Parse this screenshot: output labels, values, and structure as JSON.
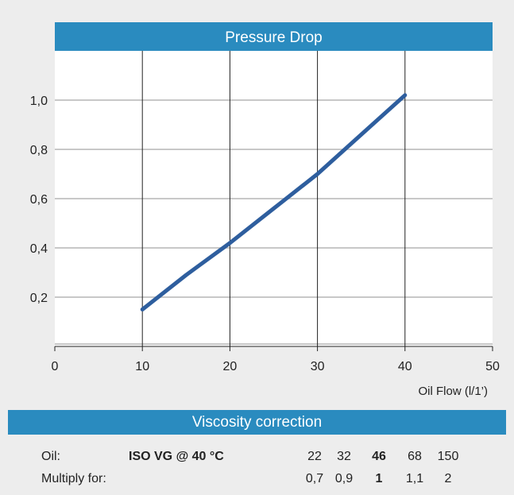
{
  "chart_data": {
    "type": "line",
    "title": "Pressure Drop",
    "xlabel": "Oil Flow  (l/1’)",
    "ylabel": "",
    "xlim": [
      0,
      50
    ],
    "ylim": [
      0,
      1.2
    ],
    "x_ticks": [
      0,
      10,
      20,
      30,
      40,
      50
    ],
    "x_tick_labels": [
      "0",
      "10",
      "20",
      "30",
      "40",
      "50"
    ],
    "y_ticks": [
      0.2,
      0.4,
      0.6,
      0.8,
      1.0
    ],
    "y_tick_labels": [
      "0,2",
      "0,4",
      "0,6",
      "0,8",
      "1,0"
    ],
    "grid": true,
    "series": [
      {
        "color": "#2e5e9e",
        "x": [
          10,
          15,
          20,
          25,
          30,
          35,
          40
        ],
        "y": [
          0.15,
          0.29,
          0.42,
          0.56,
          0.7,
          0.86,
          1.02
        ]
      }
    ]
  },
  "viscosity": {
    "title": "Viscosity correction",
    "oil_label": "Oil:",
    "grade_label": "ISO VG @ 40 °C",
    "multiply_label": "Multiply for:",
    "grades": [
      "22",
      "32",
      "46",
      "68",
      "150"
    ],
    "factors": [
      "0,7",
      "0,9",
      "1",
      "1,1",
      "2"
    ],
    "highlight_index": 2
  },
  "colors": {
    "header": "#2a8bbf",
    "line": "#2e5e9e",
    "grid_h": "#c8c8c8",
    "grid_v": "#222222",
    "background": "#ededed"
  }
}
